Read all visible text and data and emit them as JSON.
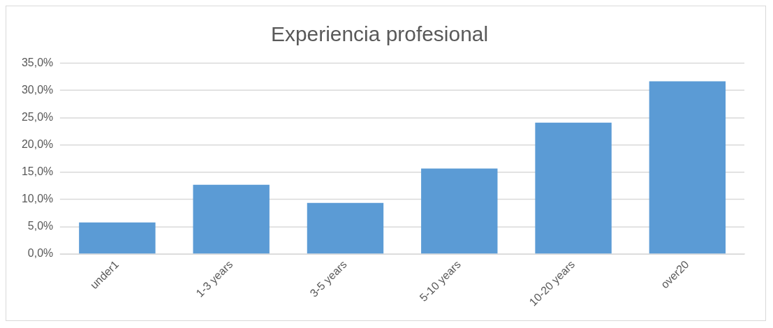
{
  "chart_data": {
    "type": "bar",
    "title": "Experiencia profesional",
    "categories": [
      "under1",
      "1-3 years",
      "3-5 years",
      "5-10 years",
      "10-20 years",
      "over20"
    ],
    "values": [
      5.8,
      12.7,
      9.4,
      15.7,
      24.1,
      31.7
    ],
    "color": "#5b9bd5",
    "ylim": [
      0,
      35
    ],
    "yticks": [
      {
        "value": 0,
        "label": "0,0%"
      },
      {
        "value": 5,
        "label": "5,0%"
      },
      {
        "value": 10,
        "label": "10,0%"
      },
      {
        "value": 15,
        "label": "15,0%"
      },
      {
        "value": 20,
        "label": "20,0%"
      },
      {
        "value": 25,
        "label": "25,0%"
      },
      {
        "value": 30,
        "label": "30,0%"
      },
      {
        "value": 35,
        "label": "35,0%"
      }
    ],
    "grid": "y",
    "legend": false
  }
}
